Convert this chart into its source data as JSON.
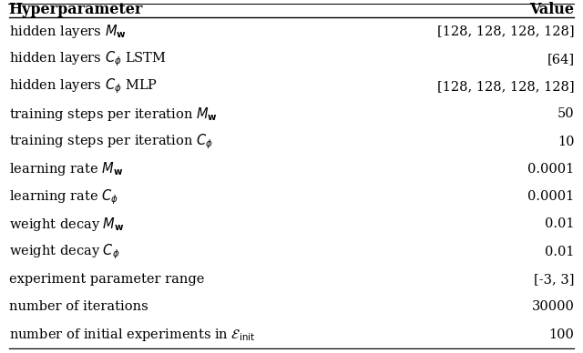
{
  "title_left": "Hyperparameter",
  "title_right": "Value",
  "rows": [
    [
      "hidden layers $M_{\\mathbf{w}}$",
      "[128, 128, 128, 128]"
    ],
    [
      "hidden layers $C_{\\phi}$ LSTM",
      "[64]"
    ],
    [
      "hidden layers $C_{\\phi}$ MLP",
      "[128, 128, 128, 128]"
    ],
    [
      "training steps per iteration $M_{\\mathbf{w}}$",
      "50"
    ],
    [
      "training steps per iteration $C_{\\phi}$",
      "10"
    ],
    [
      "learning rate $M_{\\mathbf{w}}$",
      "0.0001"
    ],
    [
      "learning rate $C_{\\phi}$",
      "0.0001"
    ],
    [
      "weight decay $M_{\\mathbf{w}}$",
      "0.01"
    ],
    [
      "weight decay $C_{\\phi}$",
      "0.01"
    ],
    [
      "experiment parameter range",
      "[-3, 3]"
    ],
    [
      "number of iterations",
      "30000"
    ],
    [
      "number of initial experiments in $\\mathcal{E}_{\\mathrm{init}}$",
      "100"
    ]
  ],
  "bg_color": "#ffffff",
  "header_line_color": "#000000",
  "text_color": "#000000",
  "figsize": [
    6.4,
    3.88
  ],
  "dpi": 100,
  "fontsize": 10.5,
  "header_fontsize": 11.5
}
